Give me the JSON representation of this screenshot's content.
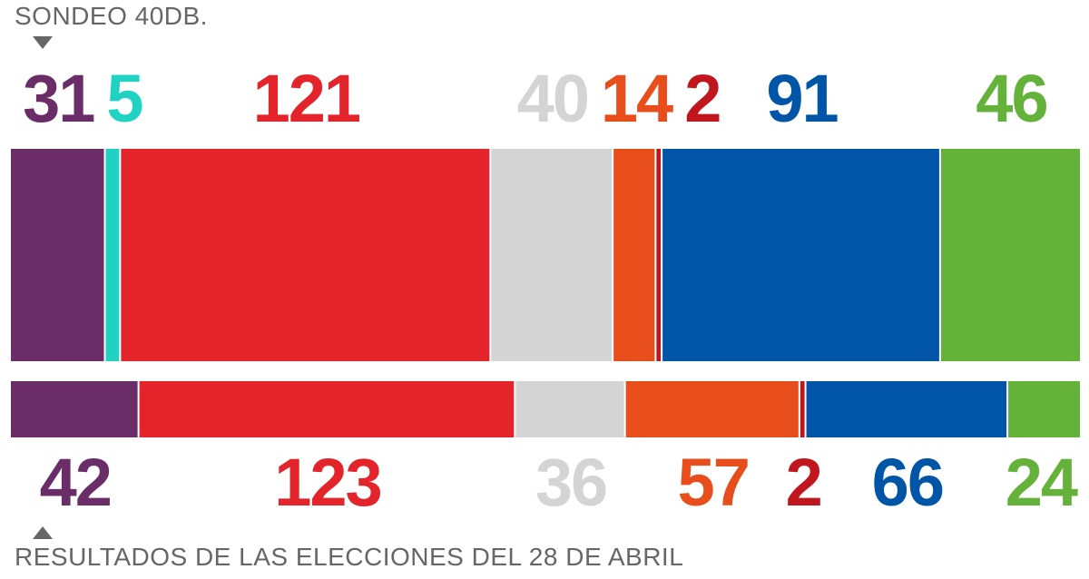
{
  "captions": {
    "top": "SONDEO 40DB.",
    "bottom": "RESULTADOS DE LAS ELECCIONES DEL 28 DE ABRIL"
  },
  "chart_data": [
    {
      "type": "bar",
      "orientation": "horizontal-stacked",
      "title": "SONDEO 40DB.",
      "segments": [
        {
          "value": 31,
          "color": "#6b2d68"
        },
        {
          "value": 5,
          "color": "#20d2c2"
        },
        {
          "value": 121,
          "color": "#e3242b"
        },
        {
          "value": 40,
          "color": "#d4d4d4"
        },
        {
          "value": 14,
          "color": "#e84e1b"
        },
        {
          "value": 2,
          "color": "#c2161f"
        },
        {
          "value": 91,
          "color": "#0055a6"
        },
        {
          "value": 46,
          "color": "#64b23a"
        }
      ]
    },
    {
      "type": "bar",
      "orientation": "horizontal-stacked",
      "title": "RESULTADOS DE LAS ELECCIONES DEL 28 DE ABRIL",
      "segments": [
        {
          "value": 42,
          "color": "#6b2d68"
        },
        {
          "value": 123,
          "color": "#e3242b"
        },
        {
          "value": 36,
          "color": "#d4d4d4"
        },
        {
          "value": 57,
          "color": "#e84e1b"
        },
        {
          "value": 2,
          "color": "#c2161f"
        },
        {
          "value": 66,
          "color": "#0055a6"
        },
        {
          "value": 24,
          "color": "#64b23a"
        }
      ]
    }
  ]
}
